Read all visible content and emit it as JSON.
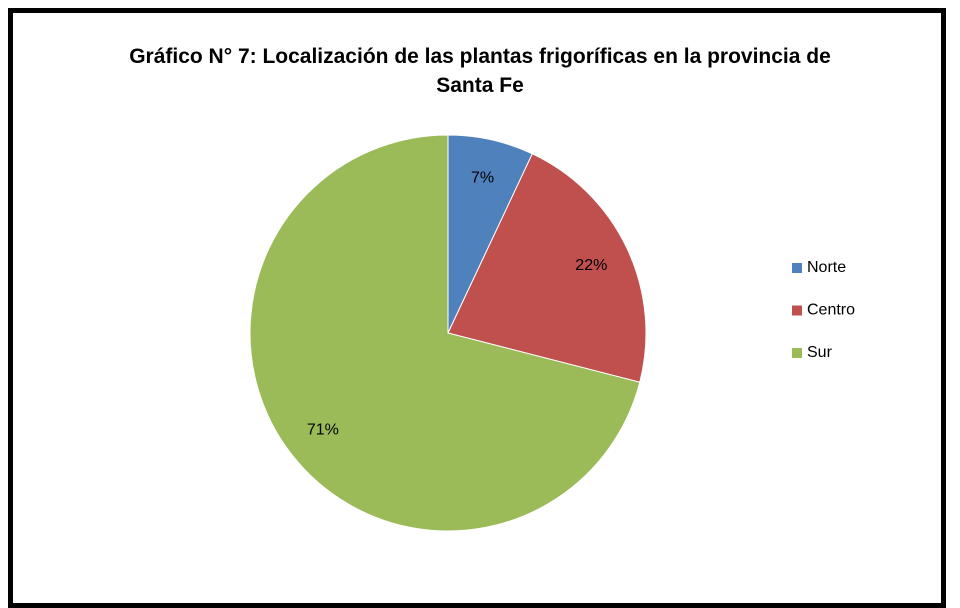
{
  "chart_data": {
    "type": "pie",
    "title": "Gráfico N° 7: Localización de las plantas frigoríficas en la provincia de Santa Fe",
    "categories": [
      "Norte",
      "Centro",
      "Sur"
    ],
    "values": [
      7,
      22,
      71
    ],
    "value_labels": [
      "7%",
      "22%",
      "71%"
    ],
    "colors": [
      "#4f81bd",
      "#c0504d",
      "#9bbb59"
    ],
    "legend": "right"
  }
}
